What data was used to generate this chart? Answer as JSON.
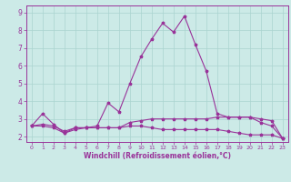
{
  "xlabel": "Windchill (Refroidissement éolien,°C)",
  "x_ticks": [
    0,
    1,
    2,
    3,
    4,
    5,
    6,
    7,
    8,
    9,
    10,
    11,
    12,
    13,
    14,
    15,
    16,
    17,
    18,
    19,
    20,
    21,
    22,
    23
  ],
  "x_tick_labels": [
    "0",
    "1",
    "2",
    "3",
    "4",
    "5",
    "6",
    "7",
    "8",
    "9",
    "10",
    "11",
    "12",
    "13",
    "14",
    "15",
    "16",
    "17",
    "18",
    "19",
    "20",
    "21",
    "22",
    "23"
  ],
  "ylim": [
    1.7,
    9.4
  ],
  "xlim": [
    -0.5,
    23.5
  ],
  "yticks": [
    2,
    3,
    4,
    5,
    6,
    7,
    8,
    9
  ],
  "y_tick_labels": [
    "2",
    "3",
    "4",
    "5",
    "6",
    "7",
    "8",
    "9"
  ],
  "bg_color": "#cceae7",
  "line_color": "#993399",
  "grid_color": "#aad4d0",
  "line1_x": [
    0,
    1,
    2,
    3,
    4,
    5,
    6,
    7,
    8,
    9,
    10,
    11,
    12,
    13,
    14,
    15,
    16,
    17,
    18,
    19,
    20,
    21,
    22,
    23
  ],
  "line1_y": [
    2.6,
    3.3,
    2.7,
    2.2,
    2.5,
    2.5,
    2.6,
    3.9,
    3.4,
    5.0,
    6.5,
    7.5,
    8.4,
    7.9,
    8.8,
    7.2,
    5.7,
    3.3,
    3.1,
    3.1,
    3.1,
    2.8,
    2.6,
    1.9
  ],
  "line2_x": [
    0,
    1,
    2,
    3,
    4,
    5,
    6,
    7,
    8,
    9,
    10,
    11,
    12,
    13,
    14,
    15,
    16,
    17,
    18,
    19,
    20,
    21,
    22,
    23
  ],
  "line2_y": [
    2.6,
    2.7,
    2.6,
    2.3,
    2.5,
    2.5,
    2.5,
    2.5,
    2.5,
    2.8,
    2.9,
    3.0,
    3.0,
    3.0,
    3.0,
    3.0,
    3.0,
    3.1,
    3.1,
    3.1,
    3.1,
    3.0,
    2.9,
    1.9
  ],
  "line3_x": [
    0,
    1,
    2,
    3,
    4,
    5,
    6,
    7,
    8,
    9,
    10,
    11,
    12,
    13,
    14,
    15,
    16,
    17,
    18,
    19,
    20,
    21,
    22,
    23
  ],
  "line3_y": [
    2.6,
    2.6,
    2.5,
    2.2,
    2.4,
    2.5,
    2.5,
    2.5,
    2.5,
    2.6,
    2.6,
    2.5,
    2.4,
    2.4,
    2.4,
    2.4,
    2.4,
    2.4,
    2.3,
    2.2,
    2.1,
    2.1,
    2.1,
    1.9
  ],
  "lw": 0.8,
  "ms": 2.5
}
